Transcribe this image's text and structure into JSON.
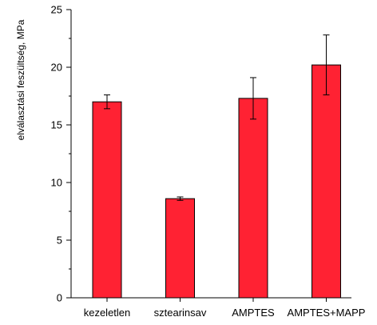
{
  "chart_data": {
    "type": "bar",
    "title": "",
    "xlabel": "",
    "ylabel": "elválasztási feszültség, MPa",
    "ylim": [
      0,
      25
    ],
    "yticks": [
      0,
      5,
      10,
      15,
      20,
      25
    ],
    "yticklabels": [
      "0",
      "5",
      "10",
      "15",
      "20",
      "25"
    ],
    "grid": false,
    "legend": "none",
    "categories": [
      "kezeletlen",
      "sztearinsav",
      "AMPTES",
      "AMPTES+MAPP"
    ],
    "values": [
      17.0,
      8.6,
      17.3,
      20.2
    ],
    "errors": [
      0.6,
      0.15,
      1.8,
      2.6
    ],
    "bar_color": "#ff2233",
    "bar_edge_color": "#000000"
  }
}
